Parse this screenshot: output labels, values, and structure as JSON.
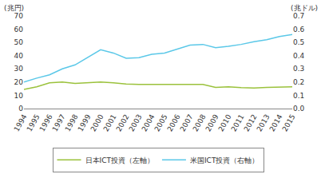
{
  "chart_data": {
    "type": "line",
    "ylabel": "(兆円)",
    "y2label": "(兆ドル)",
    "x": [
      1994,
      1995,
      1996,
      1997,
      1998,
      1999,
      2000,
      2001,
      2002,
      2003,
      2004,
      2005,
      2006,
      2007,
      2008,
      2009,
      2010,
      2011,
      2012,
      2013,
      2014,
      2015
    ],
    "xlim": [
      1994,
      2015
    ],
    "xticks": [
      1994,
      1995,
      1996,
      1997,
      1998,
      1999,
      2000,
      2001,
      2002,
      2003,
      2004,
      2005,
      2006,
      2007,
      2008,
      2009,
      2010,
      2011,
      2012,
      2013,
      2014,
      2015
    ],
    "ylim": [
      0,
      70
    ],
    "yticks": [
      0,
      10,
      20,
      30,
      40,
      50,
      60,
      70
    ],
    "y2lim": [
      0,
      0.7
    ],
    "y2ticks": [
      {
        "value": 0,
        "label": "0.0"
      },
      0.1,
      0.2,
      0.3,
      0.4,
      0.5,
      0.6,
      0.7
    ],
    "grid": false,
    "legend": "bottom",
    "series": [
      {
        "name": "日本ICT投資（左軸）",
        "color": "#9bc23c",
        "values": [
          14.5,
          16.5,
          19.5,
          20,
          19,
          19.5,
          20,
          19.5,
          18.5,
          18.3,
          18.3,
          18.5,
          18.3,
          18.5,
          18.3,
          16,
          16.5,
          15.8,
          15.5,
          16,
          16.3,
          16.5
        ]
      },
      {
        "name": "米国ICT投資（右軸）",
        "color": "#5bc8e8",
        "axis": "y2",
        "values": [
          0.2,
          0.23,
          0.255,
          0.3,
          0.33,
          0.385,
          0.445,
          0.42,
          0.38,
          0.385,
          0.41,
          0.42,
          0.45,
          0.48,
          0.485,
          0.46,
          0.47,
          0.485,
          0.505,
          0.52,
          0.545,
          0.56
        ]
      }
    ]
  }
}
